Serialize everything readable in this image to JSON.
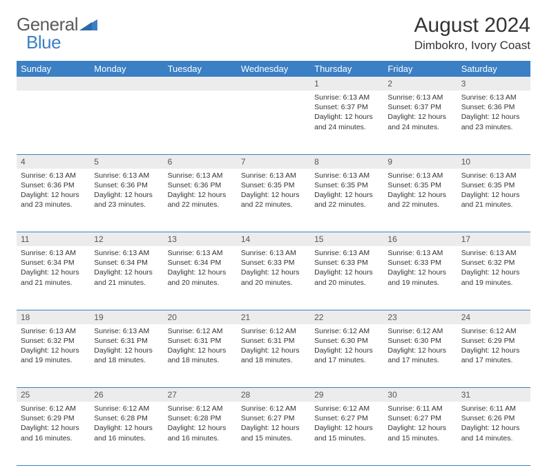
{
  "logo": {
    "text1": "General",
    "text2": "Blue"
  },
  "title": "August 2024",
  "location": "Dimbokro, Ivory Coast",
  "colors": {
    "header_bg": "#3b7fc4",
    "header_text": "#ffffff",
    "daynum_bg": "#ececec",
    "body_text": "#333333",
    "row_border": "#3b7fc4"
  },
  "fonts": {
    "title_size": 30,
    "location_size": 17,
    "header_size": 13,
    "body_size": 10.5
  },
  "days_of_week": [
    "Sunday",
    "Monday",
    "Tuesday",
    "Wednesday",
    "Thursday",
    "Friday",
    "Saturday"
  ],
  "weeks": [
    [
      null,
      null,
      null,
      null,
      {
        "n": "1",
        "sunrise": "6:13 AM",
        "sunset": "6:37 PM",
        "daylight": "12 hours and 24 minutes."
      },
      {
        "n": "2",
        "sunrise": "6:13 AM",
        "sunset": "6:37 PM",
        "daylight": "12 hours and 24 minutes."
      },
      {
        "n": "3",
        "sunrise": "6:13 AM",
        "sunset": "6:36 PM",
        "daylight": "12 hours and 23 minutes."
      }
    ],
    [
      {
        "n": "4",
        "sunrise": "6:13 AM",
        "sunset": "6:36 PM",
        "daylight": "12 hours and 23 minutes."
      },
      {
        "n": "5",
        "sunrise": "6:13 AM",
        "sunset": "6:36 PM",
        "daylight": "12 hours and 23 minutes."
      },
      {
        "n": "6",
        "sunrise": "6:13 AM",
        "sunset": "6:36 PM",
        "daylight": "12 hours and 22 minutes."
      },
      {
        "n": "7",
        "sunrise": "6:13 AM",
        "sunset": "6:35 PM",
        "daylight": "12 hours and 22 minutes."
      },
      {
        "n": "8",
        "sunrise": "6:13 AM",
        "sunset": "6:35 PM",
        "daylight": "12 hours and 22 minutes."
      },
      {
        "n": "9",
        "sunrise": "6:13 AM",
        "sunset": "6:35 PM",
        "daylight": "12 hours and 22 minutes."
      },
      {
        "n": "10",
        "sunrise": "6:13 AM",
        "sunset": "6:35 PM",
        "daylight": "12 hours and 21 minutes."
      }
    ],
    [
      {
        "n": "11",
        "sunrise": "6:13 AM",
        "sunset": "6:34 PM",
        "daylight": "12 hours and 21 minutes."
      },
      {
        "n": "12",
        "sunrise": "6:13 AM",
        "sunset": "6:34 PM",
        "daylight": "12 hours and 21 minutes."
      },
      {
        "n": "13",
        "sunrise": "6:13 AM",
        "sunset": "6:34 PM",
        "daylight": "12 hours and 20 minutes."
      },
      {
        "n": "14",
        "sunrise": "6:13 AM",
        "sunset": "6:33 PM",
        "daylight": "12 hours and 20 minutes."
      },
      {
        "n": "15",
        "sunrise": "6:13 AM",
        "sunset": "6:33 PM",
        "daylight": "12 hours and 20 minutes."
      },
      {
        "n": "16",
        "sunrise": "6:13 AM",
        "sunset": "6:33 PM",
        "daylight": "12 hours and 19 minutes."
      },
      {
        "n": "17",
        "sunrise": "6:13 AM",
        "sunset": "6:32 PM",
        "daylight": "12 hours and 19 minutes."
      }
    ],
    [
      {
        "n": "18",
        "sunrise": "6:13 AM",
        "sunset": "6:32 PM",
        "daylight": "12 hours and 19 minutes."
      },
      {
        "n": "19",
        "sunrise": "6:13 AM",
        "sunset": "6:31 PM",
        "daylight": "12 hours and 18 minutes."
      },
      {
        "n": "20",
        "sunrise": "6:12 AM",
        "sunset": "6:31 PM",
        "daylight": "12 hours and 18 minutes."
      },
      {
        "n": "21",
        "sunrise": "6:12 AM",
        "sunset": "6:31 PM",
        "daylight": "12 hours and 18 minutes."
      },
      {
        "n": "22",
        "sunrise": "6:12 AM",
        "sunset": "6:30 PM",
        "daylight": "12 hours and 17 minutes."
      },
      {
        "n": "23",
        "sunrise": "6:12 AM",
        "sunset": "6:30 PM",
        "daylight": "12 hours and 17 minutes."
      },
      {
        "n": "24",
        "sunrise": "6:12 AM",
        "sunset": "6:29 PM",
        "daylight": "12 hours and 17 minutes."
      }
    ],
    [
      {
        "n": "25",
        "sunrise": "6:12 AM",
        "sunset": "6:29 PM",
        "daylight": "12 hours and 16 minutes."
      },
      {
        "n": "26",
        "sunrise": "6:12 AM",
        "sunset": "6:28 PM",
        "daylight": "12 hours and 16 minutes."
      },
      {
        "n": "27",
        "sunrise": "6:12 AM",
        "sunset": "6:28 PM",
        "daylight": "12 hours and 16 minutes."
      },
      {
        "n": "28",
        "sunrise": "6:12 AM",
        "sunset": "6:27 PM",
        "daylight": "12 hours and 15 minutes."
      },
      {
        "n": "29",
        "sunrise": "6:12 AM",
        "sunset": "6:27 PM",
        "daylight": "12 hours and 15 minutes."
      },
      {
        "n": "30",
        "sunrise": "6:11 AM",
        "sunset": "6:27 PM",
        "daylight": "12 hours and 15 minutes."
      },
      {
        "n": "31",
        "sunrise": "6:11 AM",
        "sunset": "6:26 PM",
        "daylight": "12 hours and 14 minutes."
      }
    ]
  ],
  "labels": {
    "sunrise": "Sunrise:",
    "sunset": "Sunset:",
    "daylight": "Daylight:"
  }
}
